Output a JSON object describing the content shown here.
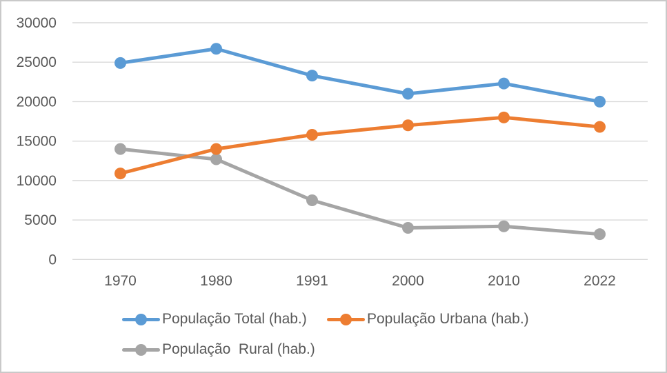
{
  "style": {
    "background": "#FFFFFF",
    "frame_border_color": "#C9C9C9",
    "gridline_color": "#D9D9D9",
    "text_color": "#595959"
  },
  "chart_data": {
    "type": "line",
    "title": "",
    "xlabel": "",
    "ylabel": "",
    "categories": [
      "1970",
      "1980",
      "1991",
      "2000",
      "2010",
      "2022"
    ],
    "series": [
      {
        "name": "População Total (hab.)",
        "color": "#5B9BD5",
        "values": [
          24900,
          26700,
          23300,
          21000,
          22300,
          20000
        ]
      },
      {
        "name": "População Urbana (hab.)",
        "color": "#ED7D31",
        "values": [
          10900,
          14000,
          15800,
          17000,
          18000,
          16800
        ]
      },
      {
        "name": "População  Rural (hab.)",
        "color": "#A5A5A5",
        "values": [
          14000,
          12700,
          7500,
          4000,
          4200,
          3200
        ]
      }
    ],
    "ylim": [
      0,
      30000
    ],
    "yticks": [
      0,
      5000,
      10000,
      15000,
      20000,
      25000,
      30000
    ],
    "grid": true,
    "marker": "circle",
    "legend_position": "bottom"
  }
}
